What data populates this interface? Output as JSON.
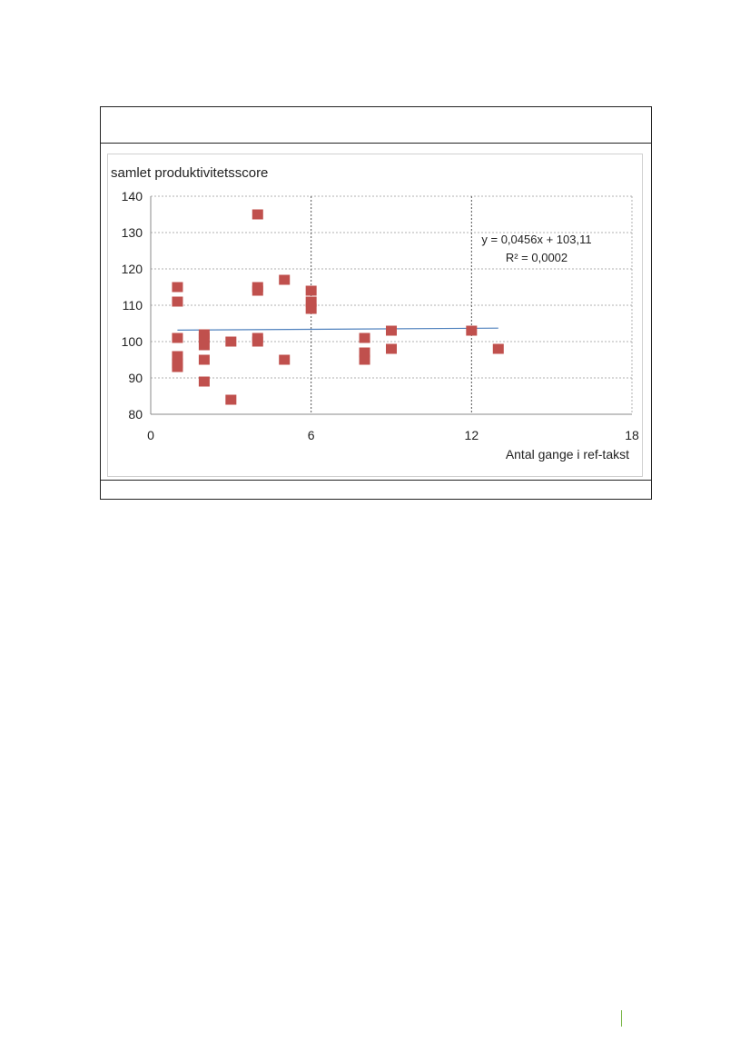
{
  "chart_data": {
    "type": "scatter",
    "ylabel": "samlet produktivitetsscore",
    "xlabel": "Antal gange i ref-takst",
    "xlim": [
      0,
      18
    ],
    "ylim": [
      80,
      140
    ],
    "x_ticks": [
      "0",
      "6",
      "12",
      "18"
    ],
    "y_ticks": [
      "80",
      "90",
      "100",
      "110",
      "120",
      "130",
      "140"
    ],
    "grid": true,
    "points": [
      {
        "x": 1,
        "y": 115
      },
      {
        "x": 1,
        "y": 111
      },
      {
        "x": 1,
        "y": 101
      },
      {
        "x": 1,
        "y": 96
      },
      {
        "x": 1,
        "y": 94
      },
      {
        "x": 1,
        "y": 93
      },
      {
        "x": 2,
        "y": 102
      },
      {
        "x": 2,
        "y": 101
      },
      {
        "x": 2,
        "y": 99
      },
      {
        "x": 2,
        "y": 95
      },
      {
        "x": 2,
        "y": 89
      },
      {
        "x": 3,
        "y": 100
      },
      {
        "x": 3,
        "y": 84
      },
      {
        "x": 4,
        "y": 135
      },
      {
        "x": 4,
        "y": 115
      },
      {
        "x": 4,
        "y": 114
      },
      {
        "x": 4,
        "y": 101
      },
      {
        "x": 4,
        "y": 100
      },
      {
        "x": 5,
        "y": 117
      },
      {
        "x": 5,
        "y": 95
      },
      {
        "x": 6,
        "y": 114
      },
      {
        "x": 6,
        "y": 111
      },
      {
        "x": 6,
        "y": 109
      },
      {
        "x": 8,
        "y": 101
      },
      {
        "x": 8,
        "y": 97
      },
      {
        "x": 8,
        "y": 95
      },
      {
        "x": 9,
        "y": 103
      },
      {
        "x": 9,
        "y": 98
      },
      {
        "x": 12,
        "y": 103
      },
      {
        "x": 13,
        "y": 98
      }
    ],
    "trendline": {
      "slope": 0.0456,
      "intercept": 103.11,
      "x_range": [
        1,
        13
      ],
      "color": "#4f81bd",
      "equation_label": "y = 0,0456x + 103,11",
      "r2_label": "R² = 0,0002"
    },
    "marker_color": "#c0504d"
  }
}
